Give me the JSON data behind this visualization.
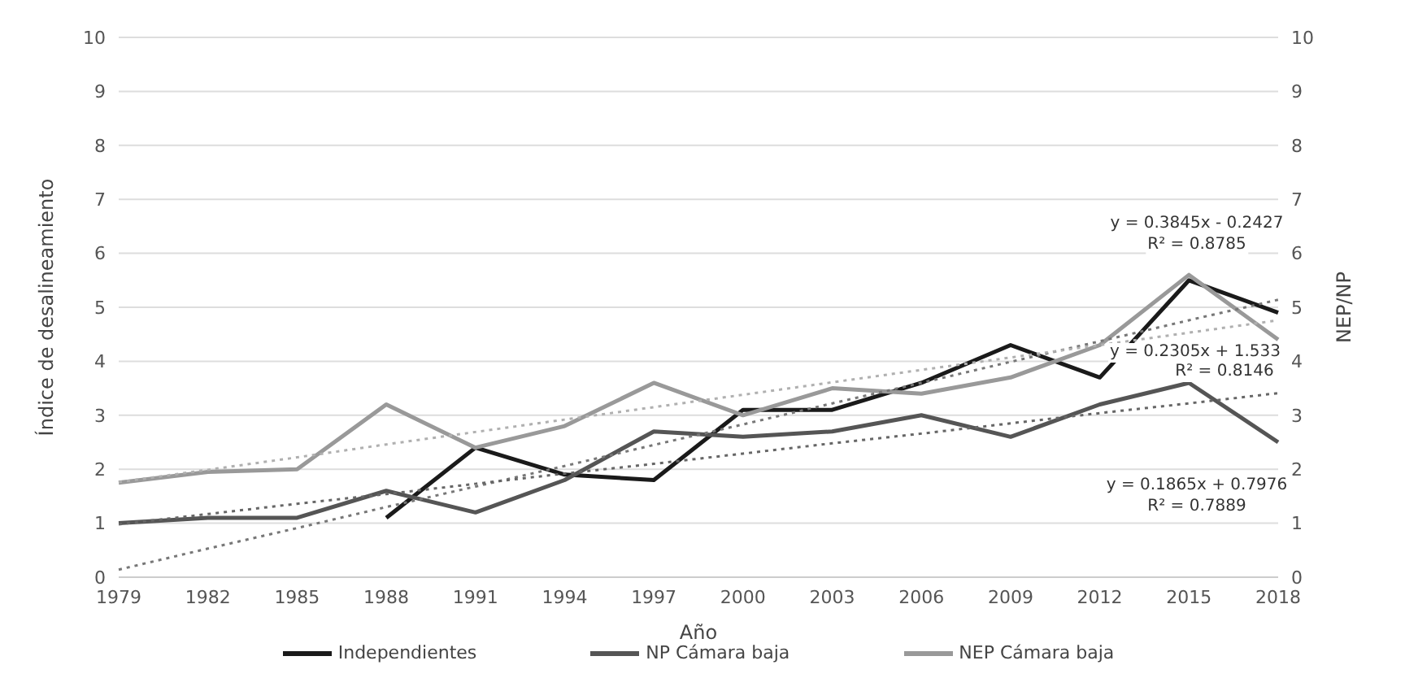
{
  "chart_data": {
    "type": "line",
    "xlabel": "Año",
    "ylabel": "Índice de desalineamiento",
    "y2label": "NEP/NP",
    "categories": [
      "1979",
      "1982",
      "1985",
      "1988",
      "1991",
      "1994",
      "1997",
      "2000",
      "2003",
      "2006",
      "2009",
      "2012",
      "2015",
      "2018"
    ],
    "series": [
      {
        "name": "Independientes",
        "color": "#1a1a1a",
        "values": [
          null,
          null,
          null,
          1.1,
          2.4,
          1.9,
          1.8,
          3.1,
          3.1,
          3.6,
          4.3,
          3.7,
          5.5,
          4.9
        ]
      },
      {
        "name": "NP Cámara baja",
        "color": "#555555",
        "values": [
          1.0,
          1.1,
          1.1,
          1.6,
          1.2,
          1.8,
          2.7,
          2.6,
          2.7,
          3.0,
          2.6,
          3.2,
          3.6,
          2.5
        ]
      },
      {
        "name": "NEP Cámara baja",
        "color": "#999999",
        "values": [
          1.75,
          1.95,
          2.0,
          3.2,
          2.4,
          2.8,
          3.6,
          3.0,
          3.5,
          3.4,
          3.7,
          4.3,
          5.6,
          4.4
        ]
      },
      {
        "color": "#777777",
        "line_style": "dotted",
        "values": [
          0.14,
          0.53,
          0.91,
          1.3,
          1.68,
          2.06,
          2.45,
          2.83,
          3.22,
          3.6,
          3.99,
          4.37,
          4.76,
          5.14
        ]
      },
      {
        "color": "#666666",
        "line_style": "dotted",
        "values": [
          0.98,
          1.17,
          1.36,
          1.54,
          1.73,
          1.92,
          2.1,
          2.29,
          2.48,
          2.66,
          2.85,
          3.04,
          3.22,
          3.41
        ]
      },
      {
        "color": "#b0b0b0",
        "line_style": "dotted",
        "values": [
          1.76,
          1.99,
          2.22,
          2.46,
          2.69,
          2.92,
          3.15,
          3.38,
          3.61,
          3.84,
          4.07,
          4.3,
          4.53,
          4.76
        ]
      }
    ],
    "ylim": [
      0,
      10
    ],
    "yticks": [
      0,
      1,
      2,
      3,
      4,
      5,
      6,
      7,
      8,
      9,
      10
    ],
    "y2lim": [
      0,
      10
    ],
    "y2ticks": [
      0,
      1,
      2,
      3,
      4,
      5,
      6,
      7,
      8,
      9,
      10
    ],
    "annotations": [
      "y = 0.3845x - 0.2427",
      "R² = 0.8785",
      "y = 0.2305x + 1.533",
      "R² = 0.8146",
      "y = 0.1865x + 0.7976",
      "R² = 0.7889"
    ],
    "grid": "y",
    "legend": "bottom",
    "marker": "none",
    "line_style": "solid"
  }
}
